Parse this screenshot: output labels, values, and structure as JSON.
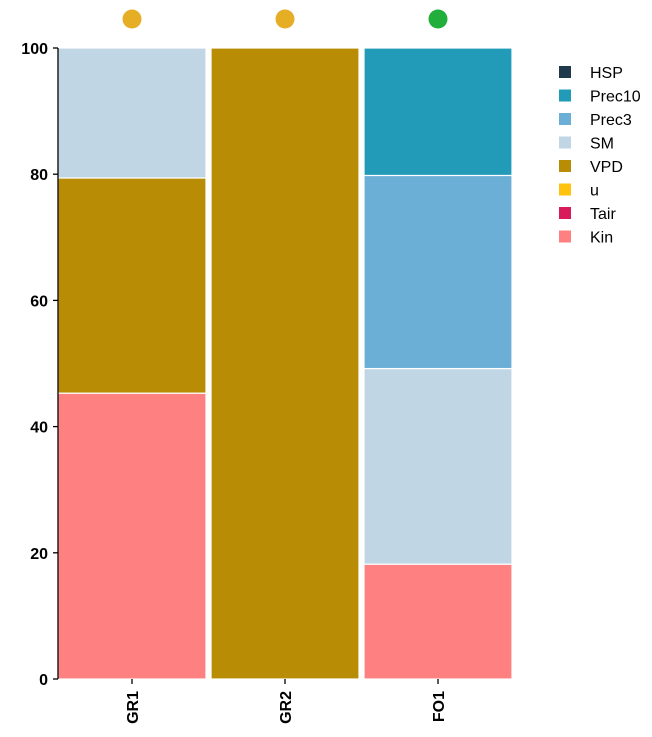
{
  "chart_data": {
    "type": "bar",
    "stacked": true,
    "categories": [
      "GR1",
      "GR2",
      "FO1"
    ],
    "category_markers": [
      "#E6AE24",
      "#E6AE24",
      "#22AE3A"
    ],
    "ylim": [
      0,
      100
    ],
    "yticks": [
      "0",
      "20",
      "40",
      "60",
      "80",
      "100"
    ],
    "legend_position": "right",
    "legend": [
      {
        "name": "HSP",
        "color": "#1F3A4A"
      },
      {
        "name": "Prec10",
        "color": "#229BB8"
      },
      {
        "name": "Prec3",
        "color": "#6BAED6"
      },
      {
        "name": "SM",
        "color": "#C0D6E4"
      },
      {
        "name": "VPD",
        "color": "#B88C05"
      },
      {
        "name": "u",
        "color": "#FFC20E"
      },
      {
        "name": "Tair",
        "color": "#D81B5A"
      },
      {
        "name": "Kin",
        "color": "#FF8080"
      }
    ],
    "series": [
      {
        "name": "Kin",
        "color": "#FF8080",
        "values": [
          45.3,
          0,
          18.2
        ]
      },
      {
        "name": "Tair",
        "color": "#D81B5A",
        "values": [
          0,
          0,
          0
        ]
      },
      {
        "name": "u",
        "color": "#FFC20E",
        "values": [
          0,
          0,
          0
        ]
      },
      {
        "name": "VPD",
        "color": "#B88C05",
        "values": [
          34.1,
          100,
          0
        ]
      },
      {
        "name": "SM",
        "color": "#C0D6E4",
        "values": [
          20.6,
          0,
          31.0
        ]
      },
      {
        "name": "Prec3",
        "color": "#6BAED6",
        "values": [
          0,
          0,
          30.6
        ]
      },
      {
        "name": "Prec10",
        "color": "#229BB8",
        "values": [
          0,
          0,
          20.2
        ]
      },
      {
        "name": "HSP",
        "color": "#1F3A4A",
        "values": [
          0,
          0,
          0
        ]
      }
    ]
  }
}
